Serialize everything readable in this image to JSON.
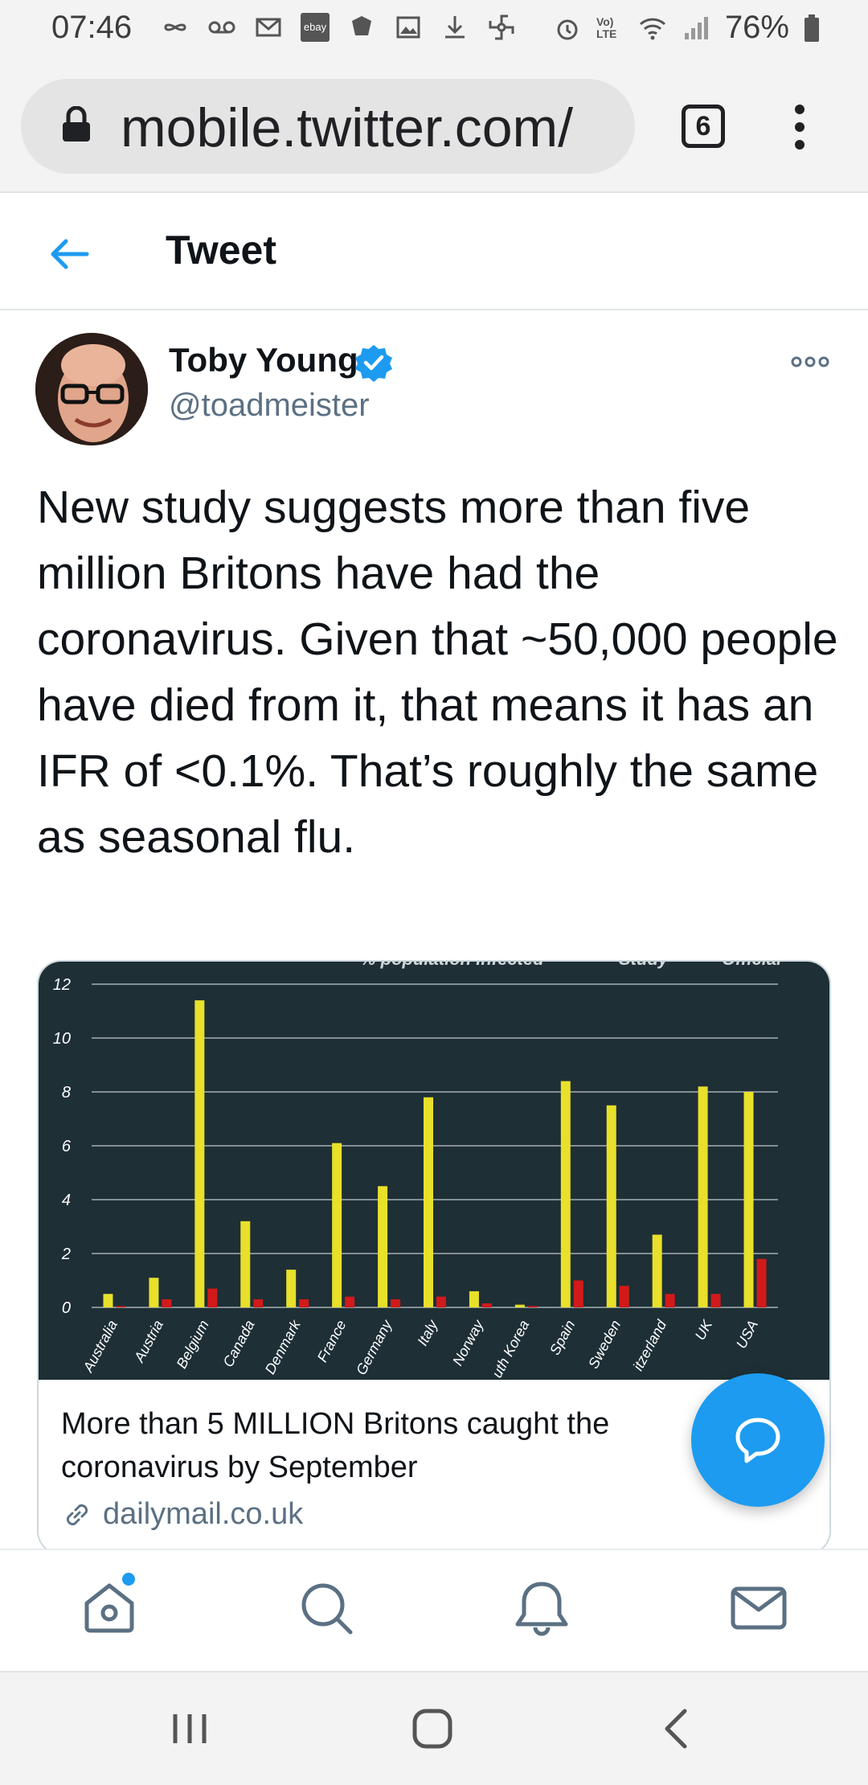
{
  "status_bar": {
    "time": "07:46",
    "battery": "76%",
    "icons": [
      "infinity-icon",
      "voicemail-icon",
      "gmail-icon",
      "ebay-icon",
      "app-icon",
      "gallery-icon",
      "download-icon",
      "pinwheel-icon",
      "alarm-icon",
      "volte-icon",
      "wifi-icon",
      "signal-icon",
      "battery-icon"
    ],
    "ebay_label": "ebay",
    "volte_label": "Vo) LTE"
  },
  "browser": {
    "url": "mobile.twitter.com/",
    "tab_count": "6"
  },
  "header": {
    "title": "Tweet"
  },
  "tweet": {
    "author_name": "Toby Young",
    "author_handle": "@toadmeister",
    "text": "New study suggests more than five million Britons have had the coronavirus. Given that ~50,000 people have died from it, that means it has an IFR of <0.1%. That’s roughly the same as seasonal flu."
  },
  "card": {
    "title": "More than 5 MILLION Britons caught the coronavirus by September",
    "domain": "dailymail.co.uk"
  },
  "chart_data": {
    "type": "bar",
    "title": "",
    "xlabel": "",
    "ylabel": "",
    "ylim": [
      0,
      12
    ],
    "yticks": [
      "0",
      "2",
      "4",
      "6",
      "8",
      "10",
      "12"
    ],
    "categories": [
      "Australia",
      "Austria",
      "Belgium",
      "Canada",
      "Denmark",
      "France",
      "Germany",
      "Italy",
      "Norway",
      "uth Korea",
      "Spain",
      "Sweden",
      "itzerland",
      "UK",
      "USA"
    ],
    "series": [
      {
        "name": "Study",
        "color": "#e8e02a",
        "values": [
          0.5,
          1.1,
          11.4,
          3.2,
          1.4,
          6.1,
          4.5,
          7.8,
          0.6,
          0.1,
          8.4,
          7.5,
          2.7,
          8.2,
          8.0
        ]
      },
      {
        "name": "Official",
        "color": "#d21a1a",
        "values": [
          0.05,
          0.3,
          0.7,
          0.3,
          0.3,
          0.4,
          0.3,
          0.4,
          0.15,
          0.05,
          1.0,
          0.8,
          0.5,
          0.5,
          1.8
        ]
      }
    ],
    "header_fragments": [
      "% population infected",
      "Study",
      "Official"
    ]
  },
  "colors": {
    "accent": "#1d9bf0",
    "chart_bg": "#1e2f36"
  }
}
